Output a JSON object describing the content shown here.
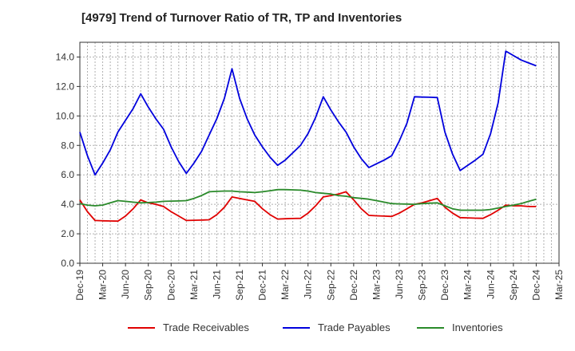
{
  "chart_data": {
    "type": "line",
    "title": "[4979]  Trend of Turnover Ratio of TR, TP and Inventories",
    "xlabel": "",
    "ylabel": "",
    "ylim": [
      0,
      15
    ],
    "yticks": [
      "0.0",
      "2.0",
      "4.0",
      "6.0",
      "8.0",
      "10.0",
      "12.0",
      "14.0"
    ],
    "xticks": [
      "Dec-19",
      "Mar-20",
      "Jun-20",
      "Sep-20",
      "Dec-20",
      "Mar-21",
      "Jun-21",
      "Sep-21",
      "Dec-21",
      "Mar-22",
      "Jun-22",
      "Sep-22",
      "Dec-22",
      "Mar-23",
      "Jun-23",
      "Sep-23",
      "Dec-23",
      "Mar-24",
      "Jun-24",
      "Sep-24",
      "Dec-24",
      "Mar-25"
    ],
    "x": [
      "2019-12",
      "2020-01",
      "2020-02",
      "2020-03",
      "2020-04",
      "2020-05",
      "2020-06",
      "2020-07",
      "2020-08",
      "2020-09",
      "2020-10",
      "2020-11",
      "2020-12",
      "2021-01",
      "2021-02",
      "2021-03",
      "2021-04",
      "2021-05",
      "2021-06",
      "2021-07",
      "2021-08",
      "2021-09",
      "2021-10",
      "2021-11",
      "2021-12",
      "2022-01",
      "2022-02",
      "2022-03",
      "2022-04",
      "2022-05",
      "2022-06",
      "2022-07",
      "2022-08",
      "2022-09",
      "2022-10",
      "2022-11",
      "2022-12",
      "2023-01",
      "2023-02",
      "2023-03",
      "2023-04",
      "2023-05",
      "2023-06",
      "2023-07",
      "2023-08",
      "2023-09",
      "2023-10",
      "2023-11",
      "2023-12",
      "2024-01",
      "2024-02",
      "2024-03",
      "2024-04",
      "2024-05",
      "2024-06",
      "2024-07",
      "2024-08",
      "2024-09",
      "2024-10",
      "2024-11",
      "2024-12"
    ],
    "grid": true,
    "legend": "bottom",
    "series": [
      {
        "name": "Trade Receivables",
        "color": "#e00000",
        "values": [
          4.3,
          3.5,
          2.9,
          2.88,
          2.87,
          2.86,
          3.2,
          3.7,
          4.3,
          4.1,
          4.0,
          3.85,
          3.5,
          3.2,
          2.9,
          2.92,
          2.93,
          2.95,
          3.3,
          3.8,
          4.5,
          4.4,
          4.3,
          4.2,
          3.7,
          3.3,
          3.0,
          3.02,
          3.04,
          3.05,
          3.4,
          3.9,
          4.5,
          4.6,
          4.7,
          4.85,
          4.3,
          3.7,
          3.25,
          3.22,
          3.2,
          3.18,
          3.4,
          3.7,
          4.0,
          4.1,
          4.25,
          4.4,
          3.8,
          3.4,
          3.1,
          3.08,
          3.06,
          3.05,
          3.3,
          3.6,
          3.95,
          3.9,
          3.9,
          3.85,
          3.85
        ]
      },
      {
        "name": "Trade Payables",
        "color": "#0000dd",
        "values": [
          8.9,
          7.3,
          6.0,
          6.8,
          7.7,
          8.9,
          9.7,
          10.5,
          11.5,
          10.6,
          9.8,
          9.1,
          7.9,
          6.9,
          6.1,
          6.8,
          7.6,
          8.7,
          9.8,
          11.2,
          13.2,
          11.2,
          9.8,
          8.7,
          7.9,
          7.2,
          6.65,
          7.0,
          7.5,
          8.0,
          8.8,
          9.9,
          11.3,
          10.4,
          9.6,
          8.9,
          7.9,
          7.1,
          6.5,
          6.75,
          7.0,
          7.3,
          8.3,
          9.5,
          11.3,
          11.28,
          11.27,
          11.25,
          8.9,
          7.4,
          6.3,
          6.65,
          7.0,
          7.4,
          8.8,
          10.9,
          14.4,
          14.1,
          13.8,
          13.6,
          13.4
        ]
      },
      {
        "name": "Inventories",
        "color": "#2a8a2a",
        "values": [
          4.05,
          3.95,
          3.9,
          3.95,
          4.1,
          4.25,
          4.2,
          4.15,
          4.1,
          4.12,
          4.15,
          4.2,
          4.22,
          4.23,
          4.25,
          4.4,
          4.6,
          4.85,
          4.88,
          4.9,
          4.9,
          4.85,
          4.83,
          4.8,
          4.85,
          4.92,
          5.0,
          5.0,
          4.98,
          4.96,
          4.9,
          4.8,
          4.75,
          4.7,
          4.6,
          4.55,
          4.45,
          4.4,
          4.35,
          4.25,
          4.15,
          4.05,
          4.03,
          4.02,
          4.0,
          4.05,
          4.08,
          4.1,
          3.9,
          3.7,
          3.6,
          3.6,
          3.6,
          3.6,
          3.65,
          3.75,
          3.85,
          3.95,
          4.05,
          4.2,
          4.35
        ]
      }
    ]
  }
}
